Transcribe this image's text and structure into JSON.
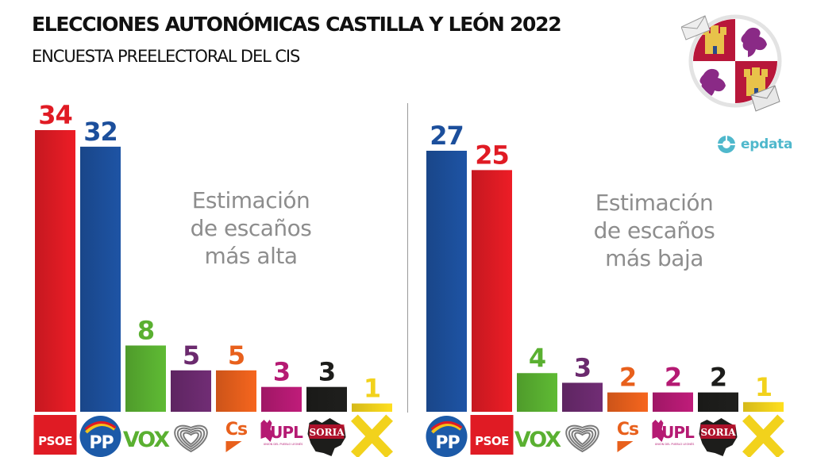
{
  "header": {
    "title": "ELECCIONES AUTONÓMICAS CASTILLA Y LEÓN 2022",
    "subtitle": "ENCUESTA PREELECTORAL DEL CIS"
  },
  "branding": {
    "source_logo_text": "epdata",
    "emblem": "castilla-y-leon-coat-of-arms-with-envelopes"
  },
  "colors": {
    "PSOE": "#e01b24",
    "PP": "#1c4f9c",
    "VOX": "#5ab031",
    "PODEMOS": "#6b2a6e",
    "Cs": "#e8601c",
    "UPL": "#b51a73",
    "SORIA": "#1d1d1b",
    "XAV": "#f2d21c",
    "annotation": "#8d8d8d",
    "epdata": "#4fb8cc"
  },
  "chart_data": [
    {
      "type": "bar",
      "title": "Estimación de escaños más alta",
      "annotation_lines": [
        "Estimación",
        "de escaños",
        "más alta"
      ],
      "categories": [
        "PSOE",
        "PP",
        "VOX",
        "Podemos-IU",
        "Cs",
        "UPL",
        "Soria ¡Ya!",
        "XAV"
      ],
      "logo_labels": [
        "PSOE",
        "PP",
        "VOX",
        "",
        "Cs",
        "UPL",
        "SORIA",
        ""
      ],
      "upl_subtext": "UNIÓN DEL PUEBLO LEONÉS",
      "values": [
        34,
        32,
        8,
        5,
        5,
        3,
        3,
        1
      ],
      "ylim": [
        0,
        34
      ],
      "grid": false,
      "xlabel": "",
      "ylabel": ""
    },
    {
      "type": "bar",
      "title": "Estimación de escaños más baja",
      "annotation_lines": [
        "Estimación",
        "de escaños",
        "más baja"
      ],
      "categories": [
        "PP",
        "PSOE",
        "VOX",
        "Podemos-IU",
        "Cs",
        "UPL",
        "Soria ¡Ya!",
        "XAV"
      ],
      "logo_labels": [
        "PP",
        "PSOE",
        "VOX",
        "",
        "Cs",
        "UPL",
        "SORIA",
        ""
      ],
      "upl_subtext": "UNIÓN DEL PUEBLO LEONÉS",
      "values": [
        27,
        25,
        4,
        3,
        2,
        2,
        2,
        1
      ],
      "ylim": [
        0,
        27
      ],
      "grid": false,
      "xlabel": "",
      "ylabel": ""
    }
  ]
}
